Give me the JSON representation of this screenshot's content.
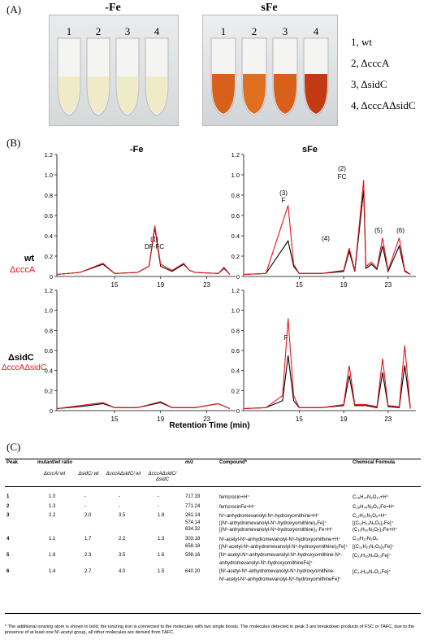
{
  "panel_a": {
    "label": "(A)",
    "left_title": "-Fe",
    "right_title": "sFe",
    "tube_numbers_left": [
      "1",
      "2",
      "3",
      "4"
    ],
    "tube_numbers_right": [
      "1",
      "2",
      "3",
      "4"
    ],
    "legend": [
      "1, wt",
      "2, ΔcccA",
      "3, ΔsidC",
      "4, ΔcccAΔsidC"
    ],
    "colors": {
      "no_iron_liquid": "#efeac6",
      "iron_liquid_light": "#d8601a",
      "iron_liquid_dark": "#c23a12"
    }
  },
  "panel_b": {
    "label": "(B)",
    "col_titles": [
      "-Fe",
      "sFe"
    ],
    "row_labels": [
      {
        "black": "wt",
        "red": "ΔcccA"
      },
      {
        "black": "ΔsidC",
        "red": "ΔcccAΔsidC"
      }
    ],
    "x_axis_title": "Retention Time (min)",
    "series_colors": {
      "black": "#000000",
      "red": "#e8141c"
    },
    "peak_labels_top_left": [
      "(1)",
      "DF-FC"
    ],
    "peak_labels_top_right": [
      "(3)",
      "F",
      "(2)",
      "FC",
      "(4)",
      "(5)",
      "(6)"
    ],
    "peak_label_bottom_right": "F"
  },
  "chart_data": [
    {
      "type": "line",
      "ylim": [
        0,
        1.2
      ],
      "yticks": [
        "0",
        "0.2",
        "0.4",
        "0.6",
        "0.8",
        "1.0",
        "1.2"
      ],
      "xticks": [
        "15",
        "19",
        "23"
      ],
      "series": [
        {
          "name": "wt",
          "x": [
            10,
            12,
            14,
            15,
            17,
            18,
            18.5,
            19,
            20,
            21,
            21.5,
            22,
            24,
            24.5,
            25
          ],
          "values": [
            0.02,
            0.04,
            0.12,
            0.03,
            0.04,
            0.1,
            0.48,
            0.1,
            0.05,
            0.12,
            0.06,
            0.04,
            0.03,
            0.08,
            0.02
          ]
        },
        {
          "name": "ΔcccA",
          "x": [
            10,
            12,
            14,
            15,
            17,
            18,
            18.5,
            19,
            20,
            21,
            21.5,
            22,
            24,
            24.5,
            25
          ],
          "values": [
            0.02,
            0.04,
            0.13,
            0.03,
            0.04,
            0.1,
            0.5,
            0.12,
            0.06,
            0.13,
            0.06,
            0.04,
            0.03,
            0.09,
            0.02
          ]
        }
      ]
    },
    {
      "type": "line",
      "ylim": [
        0,
        1.2
      ],
      "yticks": [
        "0",
        "0.2",
        "0.4",
        "0.6",
        "0.8",
        "1.0",
        "1.2"
      ],
      "xticks": [
        "15",
        "19",
        "23"
      ],
      "series": [
        {
          "name": "wt",
          "x": [
            10,
            12,
            14,
            14.5,
            15,
            17,
            19,
            19.5,
            20,
            20.8,
            21,
            21.5,
            22,
            22.5,
            23,
            24,
            24.5,
            25
          ],
          "values": [
            0.02,
            0.03,
            0.35,
            0.1,
            0.03,
            0.03,
            0.05,
            0.25,
            0.05,
            0.85,
            0.08,
            0.12,
            0.07,
            0.3,
            0.05,
            0.3,
            0.05,
            0.02
          ]
        },
        {
          "name": "ΔcccA",
          "x": [
            10,
            12,
            14,
            14.5,
            15,
            17,
            19,
            19.5,
            20,
            20.8,
            21,
            21.5,
            22,
            22.5,
            23,
            24,
            24.5,
            25
          ],
          "values": [
            0.02,
            0.03,
            0.7,
            0.12,
            0.03,
            0.03,
            0.06,
            0.28,
            0.06,
            0.95,
            0.1,
            0.14,
            0.08,
            0.38,
            0.06,
            0.38,
            0.06,
            0.02
          ]
        }
      ]
    },
    {
      "type": "line",
      "ylim": [
        0,
        1.2
      ],
      "yticks": [
        "0",
        "0.2",
        "0.4",
        "0.6",
        "0.8",
        "1.0",
        "1.2"
      ],
      "xticks": [
        "15",
        "19",
        "23"
      ],
      "series": [
        {
          "name": "ΔsidC",
          "x": [
            10,
            12,
            14,
            15,
            17,
            19,
            20,
            22,
            24,
            25
          ],
          "values": [
            0.02,
            0.04,
            0.07,
            0.03,
            0.03,
            0.08,
            0.03,
            0.03,
            0.07,
            0.02
          ]
        },
        {
          "name": "ΔcccAΔsidC",
          "x": [
            10,
            12,
            14,
            15,
            17,
            19,
            20,
            22,
            24,
            25
          ],
          "values": [
            0.02,
            0.05,
            0.08,
            0.03,
            0.03,
            0.09,
            0.03,
            0.03,
            0.07,
            0.02
          ]
        }
      ]
    },
    {
      "type": "line",
      "ylim": [
        0,
        1.2
      ],
      "yticks": [
        "0",
        "0.2",
        "0.4",
        "0.6",
        "0.8",
        "1.0",
        "1.2"
      ],
      "xticks": [
        "15",
        "19",
        "23"
      ],
      "series": [
        {
          "name": "ΔsidC",
          "x": [
            10,
            12,
            13.5,
            14,
            14.5,
            15,
            17,
            19,
            19.5,
            20,
            21,
            22,
            22.5,
            23,
            24,
            24.5,
            25
          ],
          "values": [
            0.02,
            0.03,
            0.1,
            0.55,
            0.1,
            0.03,
            0.03,
            0.05,
            0.35,
            0.05,
            0.05,
            0.03,
            0.38,
            0.04,
            0.03,
            0.45,
            0.02
          ]
        },
        {
          "name": "ΔcccAΔsidC",
          "x": [
            10,
            12,
            13.5,
            14,
            14.5,
            15,
            17,
            19,
            19.5,
            20,
            21,
            22,
            22.5,
            23,
            24,
            24.5,
            25
          ],
          "values": [
            0.02,
            0.03,
            0.15,
            0.92,
            0.15,
            0.03,
            0.03,
            0.06,
            0.45,
            0.06,
            0.06,
            0.04,
            0.52,
            0.05,
            0.04,
            0.65,
            0.02
          ]
        }
      ]
    }
  ],
  "panel_c": {
    "label": "(C)",
    "headers": {
      "peak": "Peak",
      "ratio": "mutant/wt ratio",
      "mz": "m/z",
      "compound": "Compound*",
      "formula": "Chemical Formula"
    },
    "subheaders": [
      "ΔcccA/ wt",
      "ΔsidC/ wt",
      "ΔcccAΔsidC/ wt",
      "ΔcccAΔsidC/ ΔsidC"
    ],
    "rows": [
      {
        "peak": "1",
        "r1": "1.0",
        "r2": "-",
        "r3": "-",
        "r4": "-",
        "lines": [
          {
            "mz": "717.33",
            "compound": "ferricrocin+H⁺",
            "formula": "C₂₈H₄₇N₉O₁₃+H⁺"
          }
        ]
      },
      {
        "peak": "2",
        "r1": "1.3",
        "r2": "-",
        "r3": "-",
        "r4": "-",
        "lines": [
          {
            "mz": "771.24",
            "compound": "ferricrocinFe+H⁺",
            "formula": "C₂₈H₄₄N₉O₁₃Fe+H⁺"
          }
        ]
      },
      {
        "peak": "3",
        "r1": "2.2",
        "r2": "2.0",
        "r3": "3.5",
        "r4": "1.8",
        "lines": [
          {
            "mz": "261.14",
            "compound": "N⁵-anhydromevanolyl-N⁵-hydroxyornithine+H⁺",
            "formula": "C₁₁H₂₀N₂O₅+H⁺"
          },
          {
            "mz": "574.14",
            "compound": "[(N⁵-anhydromevanolyl-N⁵-hydroxyornithine)₂Fe]⁺",
            "formula": "[(C₁₁H₁₉N₂O₅)₂Fe]⁺"
          },
          {
            "mz": "834.32",
            "compound": "[(N⁵-anhydromevanolyl-N⁵-hydroxyornithine)₃-Fe+H⁺",
            "formula": "(C₁₁H₂₀N₂O₅)₃Fe+H⁺"
          }
        ]
      },
      {
        "peak": "4",
        "r1": "1.1",
        "r2": "1.7",
        "r3": "2.2",
        "r4": "1.3",
        "lines": [
          {
            "mz": "303.18",
            "compound": "N²-acetyl-N⁵-anhydromevanolyl-N⁵-hydroxyornithine+H⁺",
            "formula": "C₁₃H₂₂N₂O₆"
          },
          {
            "mz": "658.18",
            "compound": "[(N²-acetyl-N⁵-anhydromevanolyl-N⁵-hydroxyornithine)₂Fe]⁺",
            "formula": "[(C₁₃H₂₁N₂O₆)₂Fe]⁺"
          }
        ]
      },
      {
        "peak": "5",
        "r1": "1.8",
        "r2": "2.3",
        "r3": "3.5",
        "r4": "1.6",
        "lines": [
          {
            "mz": "598.16",
            "compound": "[N⁵-acetyl-N⁵-anhydromevanolyl-N⁵-hydroxyornithine-N⁵-",
            "formula": "[C₂₂H₃₆N₄O₁₀Fe]⁺"
          },
          {
            "mz": "",
            "compound": "anhydromevanolyl-N⁵-hydroxyornithineFe]⁺",
            "formula": ""
          }
        ]
      },
      {
        "peak": "6",
        "r1": "1.4",
        "r2": "2.7",
        "r3": "4.0",
        "r4": "1.5",
        "lines": [
          {
            "mz": "640.20",
            "compound": "[N²-acetyl-N⁵-anhydromevanolyl-N⁵-hydroxyornithine-",
            "formula": "[C₂₄H₃₈N₄O₁₁Fe]⁺"
          },
          {
            "mz": "",
            "compound": "N²-acetyl-N⁵-anhydromevanolyl-N⁵-hydroxyornithineFe]⁺",
            "formula": ""
          }
        ]
      }
    ],
    "footnote": "* The additional ionizing atom is shown in bold; the ionizing iron is connected to the molecules with two single bonds. The molecules detected in peak 3 are breakdown products of FSC or TAFC; due to the presence of at least one N²-acetyl group, all other molecules are derived from TAFC."
  }
}
